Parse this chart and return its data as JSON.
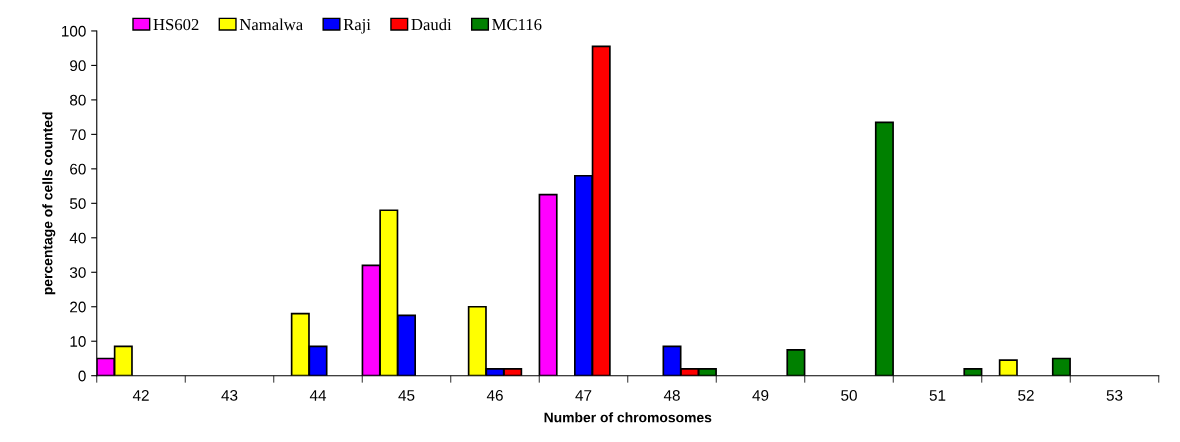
{
  "chart_data": {
    "type": "bar",
    "xlabel": "Number of chromosomes",
    "ylabel": "percentage of cells counted",
    "categories": [
      "42",
      "43",
      "44",
      "45",
      "46",
      "47",
      "48",
      "49",
      "50",
      "51",
      "52",
      "53"
    ],
    "series": [
      {
        "name": "HS602",
        "color": "#ff00ff",
        "values": [
          5,
          null,
          null,
          32,
          null,
          52.5,
          null,
          null,
          null,
          null,
          null,
          null
        ]
      },
      {
        "name": "Namalwa",
        "color": "#ffff00",
        "values": [
          8.5,
          null,
          18,
          48,
          20,
          null,
          null,
          null,
          null,
          null,
          4.5,
          null
        ]
      },
      {
        "name": "Raji",
        "color": "#0000ff",
        "values": [
          null,
          null,
          8.5,
          17.5,
          2,
          58,
          8.5,
          null,
          null,
          null,
          null,
          null
        ]
      },
      {
        "name": "Daudi",
        "color": "#ff0000",
        "values": [
          null,
          null,
          null,
          null,
          2,
          95.5,
          2,
          null,
          null,
          null,
          null,
          null
        ]
      },
      {
        "name": "MC116",
        "color": "#008000",
        "values": [
          null,
          null,
          null,
          null,
          null,
          null,
          2,
          7.5,
          73.5,
          2,
          5,
          null
        ]
      }
    ],
    "ylim": [
      0,
      100
    ],
    "yticks": [
      0,
      10,
      20,
      30,
      40,
      50,
      60,
      70,
      80,
      90,
      100
    ],
    "grid": false,
    "legend": "top"
  }
}
